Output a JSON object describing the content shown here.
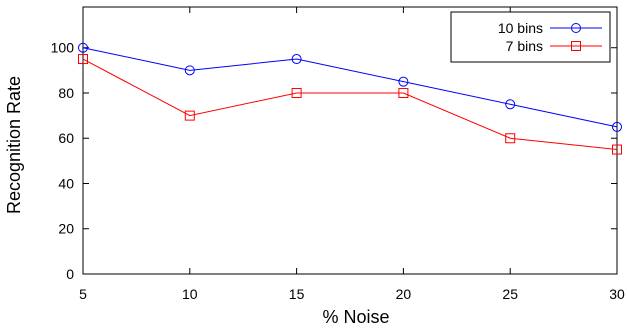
{
  "chart_data": {
    "type": "line",
    "title": "",
    "xlabel": "% Noise",
    "ylabel": "Recognition Rate",
    "x": [
      5,
      10,
      15,
      20,
      25,
      30
    ],
    "xlim": [
      5,
      30
    ],
    "ylim": [
      0,
      118
    ],
    "xticks": [
      "5",
      "10",
      "15",
      "20",
      "25",
      "30"
    ],
    "yticks": [
      "0",
      "20",
      "40",
      "60",
      "80",
      "100"
    ],
    "grid": false,
    "legend_position": "top-right",
    "series": [
      {
        "name": "10 bins",
        "values": [
          100,
          90,
          95,
          85,
          75,
          65
        ],
        "color": "#0000ff",
        "marker": "circle"
      },
      {
        "name": "7 bins",
        "values": [
          95,
          70,
          80,
          80,
          60,
          55
        ],
        "color": "#ff0000",
        "marker": "square"
      }
    ]
  }
}
